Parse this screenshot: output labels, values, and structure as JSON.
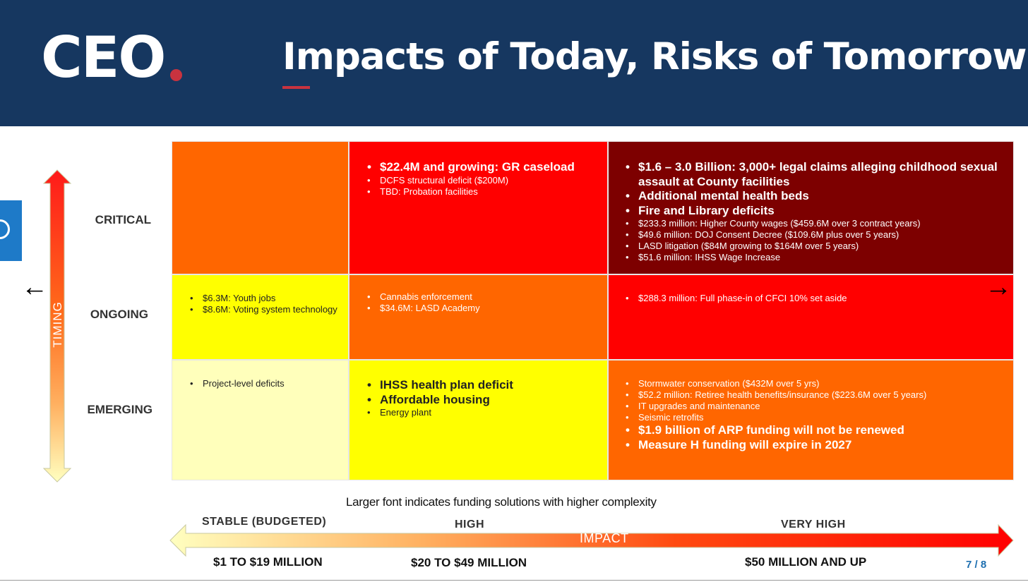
{
  "header": {
    "logo": "CEO",
    "title": "Impacts of Today, Risks of Tomorrow"
  },
  "axes": {
    "timing_label": "TIMING",
    "impact_label": "IMPACT"
  },
  "rows": [
    "CRITICAL",
    "ONGOING",
    "EMERGING"
  ],
  "columns": {
    "bands": [
      "STABLE (BUDGETED)",
      "HIGH",
      "VERY HIGH"
    ],
    "ranges": [
      "$1 TO $19 MILLION",
      "$20 TO $49 MILLION",
      "$50 MILLION AND UP"
    ]
  },
  "colors": {
    "header_bg": "#163760",
    "accent_red": "#c8333f",
    "dark_red": "#7d0000",
    "red": "#ff0000",
    "orange": "#ff6600",
    "yellow": "#ffff00",
    "pale_yellow": "#ffffbb"
  },
  "cells": {
    "critical_stable": [],
    "critical_high": [
      {
        "text": "$22.4M and growing: GR caseload",
        "size": "lg"
      },
      {
        "text": "DCFS structural deficit ($200M)",
        "size": "sm"
      },
      {
        "text": "TBD: Probation facilities",
        "size": "sm"
      }
    ],
    "critical_very_high": [
      {
        "text": "$1.6 – 3.0 Billion:  3,000+ legal claims alleging childhood sexual assault at County facilities",
        "size": "lg"
      },
      {
        "text": "Additional mental health beds",
        "size": "lg"
      },
      {
        "text": "Fire and Library deficits",
        "size": "lg"
      },
      {
        "text": "$233.3 million: Higher County wages ($459.6M over 3 contract years)",
        "size": "sm"
      },
      {
        "text": "$49.6 million: DOJ Consent Decree ($109.6M plus over 5 years)",
        "size": "sm"
      },
      {
        "text": "LASD litigation ($84M growing to $164M over 5 years)",
        "size": "sm"
      },
      {
        "text": "$51.6 million: IHSS Wage Increase",
        "size": "sm"
      }
    ],
    "ongoing_stable": [
      {
        "text": "$6.3M: Youth jobs",
        "size": "sm"
      },
      {
        "text": "$8.6M: Voting system technology",
        "size": "sm"
      }
    ],
    "ongoing_high": [
      {
        "text": "Cannabis enforcement",
        "size": "sm"
      },
      {
        "text": "$34.6M: LASD Academy",
        "size": "sm"
      }
    ],
    "ongoing_very_high": [
      {
        "text": "$288.3 million:  Full phase-in of CFCI 10% set aside",
        "size": "sm"
      }
    ],
    "emerging_stable": [
      {
        "text": "Project-level deficits",
        "size": "sm"
      }
    ],
    "emerging_high": [
      {
        "text": "IHSS health plan deficit",
        "size": "lg"
      },
      {
        "text": "Affordable housing",
        "size": "lg"
      },
      {
        "text": "Energy plant",
        "size": "sm"
      }
    ],
    "emerging_very_high": [
      {
        "text": "Stormwater conservation ($432M over 5 yrs)",
        "size": "sm"
      },
      {
        "text": "$52.2 million: Retiree health benefits/insurance ($223.6M over 5 years)",
        "size": "sm"
      },
      {
        "text": "IT upgrades and maintenance",
        "size": "sm"
      },
      {
        "text": "Seismic retrofits",
        "size": "sm"
      },
      {
        "text": "$1.9 billion of ARP funding will not be renewed",
        "size": "lg"
      },
      {
        "text": "Measure H funding will expire in 2027",
        "size": "lg"
      }
    ]
  },
  "footer": {
    "note": "Larger font indicates funding solutions with higher complexity",
    "page": "7 / 8"
  }
}
